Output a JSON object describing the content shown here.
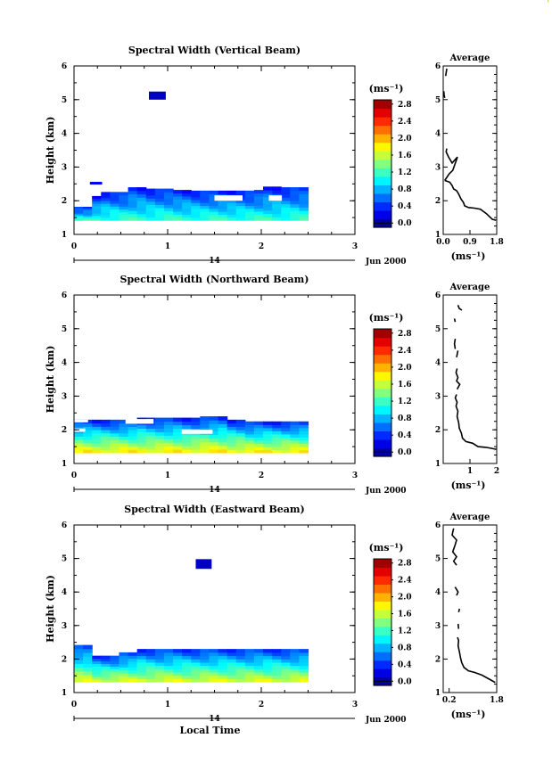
{
  "corner_mark": "'",
  "chart_data": [
    {
      "type": "heatmap",
      "title": "Spectral Width (Vertical Beam)",
      "xlabel": "",
      "ylabel": "Height (km)",
      "xlim": [
        0,
        3
      ],
      "ylim": [
        1,
        6
      ],
      "x_ticks": [
        "0",
        "1",
        "2",
        "3"
      ],
      "y_ticks": [
        "1",
        "2",
        "3",
        "4",
        "5",
        "6"
      ],
      "date_day": "14",
      "date_month": "Jun 2000",
      "colorbar": {
        "unit": "(ms⁻¹)",
        "labels": [
          "0.0",
          "0.4",
          "0.8",
          "1.2",
          "1.6",
          "2.0",
          "2.4",
          "2.8"
        ],
        "min": 0,
        "max": 3.0
      },
      "field": {
        "x_range": [
          0,
          2.5
        ],
        "top": [
          1.82,
          1.82,
          2.14,
          2.26,
          2.26,
          2.26,
          2.4,
          2.4,
          2.36,
          2.36,
          2.36,
          2.32,
          2.32,
          2.3,
          2.3,
          2.3,
          2.3,
          2.3,
          2.3,
          2.3,
          2.32,
          2.42,
          2.42,
          2.4,
          2.4,
          2.4
        ],
        "bottom": 1.42,
        "value_top": 0.45,
        "value_bottom": 1.3
      },
      "blobs": [
        {
          "x": [
            0.8,
            0.98
          ],
          "y": [
            5.0,
            5.24
          ],
          "v": 0.2
        },
        {
          "x": [
            0.17,
            0.3
          ],
          "y": [
            2.48,
            2.56
          ],
          "v": 0.35
        }
      ],
      "gaps": [
        {
          "x": [
            1.5,
            1.8
          ],
          "y": [
            2.0,
            2.16
          ]
        },
        {
          "x": [
            2.08,
            2.22
          ],
          "y": [
            2.0,
            2.16
          ]
        },
        {
          "x": [
            0.0,
            0.05
          ],
          "y": [
            2.34,
            2.48
          ]
        }
      ],
      "profile": {
        "title": "Average",
        "xlim": [
          0.0,
          1.8
        ],
        "x_ticks": [
          "0.0",
          "0.9",
          "1.8"
        ],
        "xlabel": "(ms⁻¹)",
        "y_ticks": [
          "1",
          "2",
          "3",
          "4",
          "5",
          "6"
        ],
        "segments": [
          [
            [
              0.05,
              5.05
            ],
            [
              0.03,
              5.15
            ],
            [
              0.02,
              5.25
            ]
          ],
          [
            [
              0.12,
              5.92
            ],
            [
              0.1,
              5.8
            ],
            [
              0.08,
              5.7
            ]
          ],
          [
            [
              0.12,
              3.55
            ],
            [
              0.1,
              3.45
            ],
            [
              0.18,
              3.3
            ],
            [
              0.3,
              3.12
            ],
            [
              0.48,
              3.3
            ],
            [
              0.38,
              3.05
            ],
            [
              0.32,
              2.9
            ],
            [
              0.2,
              2.8
            ],
            [
              0.05,
              2.6
            ]
          ],
          [
            [
              0.05,
              2.6
            ],
            [
              0.12,
              2.58
            ],
            [
              0.22,
              2.55
            ],
            [
              0.3,
              2.45
            ],
            [
              0.35,
              2.35
            ],
            [
              0.45,
              2.3
            ],
            [
              0.52,
              2.2
            ],
            [
              0.6,
              2.05
            ],
            [
              0.68,
              1.95
            ],
            [
              0.72,
              1.85
            ],
            [
              0.85,
              1.8
            ],
            [
              1.05,
              1.78
            ],
            [
              1.25,
              1.75
            ],
            [
              1.45,
              1.62
            ],
            [
              1.65,
              1.45
            ],
            [
              1.78,
              1.42
            ]
          ]
        ]
      }
    },
    {
      "type": "heatmap",
      "title": "Spectral Width (Northward Beam)",
      "xlabel": "",
      "ylabel": "Height (km)",
      "xlim": [
        0,
        3
      ],
      "ylim": [
        1,
        6
      ],
      "x_ticks": [
        "0",
        "1",
        "2",
        "3"
      ],
      "y_ticks": [
        "1",
        "2",
        "3",
        "4",
        "5",
        "6"
      ],
      "date_day": "14",
      "date_month": "Jun 2000",
      "colorbar": {
        "unit": "(ms⁻¹)",
        "labels": [
          "0.0",
          "0.4",
          "0.8",
          "1.2",
          "1.6",
          "2.0",
          "2.4",
          "2.8"
        ],
        "min": 0,
        "max": 3.0
      },
      "field": {
        "x_range": [
          0,
          2.5
        ],
        "top": [
          2.3,
          2.3,
          2.3,
          2.3,
          2.3,
          2.3,
          2.3,
          2.36,
          2.36,
          2.36,
          2.36,
          2.36,
          2.36,
          2.36,
          2.4,
          2.4,
          2.4,
          2.3,
          2.3,
          2.25,
          2.25,
          2.25,
          2.25,
          2.25,
          2.25,
          2.25
        ],
        "bottom": 1.32,
        "value_top": 0.45,
        "value_bottom": 1.95
      },
      "blobs": [],
      "gaps": [
        {
          "x": [
            0.0,
            0.12
          ],
          "y": [
            1.94,
            2.04
          ]
        },
        {
          "x": [
            0.55,
            0.85
          ],
          "y": [
            2.18,
            2.32
          ]
        },
        {
          "x": [
            1.15,
            1.48
          ],
          "y": [
            1.88,
            2.0
          ]
        },
        {
          "x": [
            0.0,
            0.15
          ],
          "y": [
            2.22,
            2.3
          ]
        }
      ],
      "profile": {
        "title": "Average",
        "xlim": [
          0.0,
          2.0
        ],
        "x_ticks": [
          "1",
          "2"
        ],
        "xlabel": "(ms⁻¹)",
        "y_ticks": [
          "1",
          "2",
          "3",
          "4",
          "5",
          "6"
        ],
        "segments": [
          [
            [
              0.55,
              5.7
            ],
            [
              0.6,
              5.6
            ],
            [
              0.7,
              5.55
            ]
          ],
          [
            [
              0.42,
              5.3
            ],
            [
              0.45,
              5.2
            ]
          ],
          [
            [
              0.45,
              4.7
            ],
            [
              0.42,
              4.55
            ],
            [
              0.45,
              4.4
            ]
          ],
          [
            [
              0.55,
              4.35
            ],
            [
              0.5,
              4.15
            ]
          ],
          [
            [
              0.52,
              3.82
            ],
            [
              0.48,
              3.7
            ],
            [
              0.55,
              3.55
            ],
            [
              0.5,
              3.45
            ],
            [
              0.62,
              3.35
            ],
            [
              0.52,
              3.2
            ]
          ],
          [
            [
              0.5,
              3.05
            ],
            [
              0.45,
              2.95
            ],
            [
              0.52,
              2.82
            ],
            [
              0.48,
              2.7
            ],
            [
              0.55,
              2.55
            ],
            [
              0.52,
              2.4
            ],
            [
              0.58,
              2.2
            ],
            [
              0.6,
              2.05
            ],
            [
              0.68,
              1.9
            ],
            [
              0.72,
              1.75
            ],
            [
              0.85,
              1.65
            ],
            [
              1.1,
              1.6
            ],
            [
              1.3,
              1.5
            ],
            [
              1.6,
              1.48
            ],
            [
              1.8,
              1.45
            ],
            [
              1.98,
              1.42
            ]
          ]
        ]
      }
    },
    {
      "type": "heatmap",
      "title": "Spectral Width (Eastward Beam)",
      "xlabel": "Local Time",
      "ylabel": "Height (km)",
      "xlim": [
        0,
        3
      ],
      "ylim": [
        1,
        6
      ],
      "x_ticks": [
        "0",
        "1",
        "2",
        "3"
      ],
      "y_ticks": [
        "1",
        "2",
        "3",
        "4",
        "5",
        "6"
      ],
      "date_day": "14",
      "date_month": "Jun 2000",
      "colorbar": {
        "unit": "(ms⁻¹)",
        "labels": [
          "0.0",
          "0.4",
          "0.8",
          "1.2",
          "1.6",
          "2.0",
          "2.4",
          "2.8"
        ],
        "min": 0,
        "max": 3.0
      },
      "field": {
        "x_range": [
          0,
          2.5
        ],
        "top": [
          2.42,
          2.42,
          2.1,
          2.1,
          2.1,
          2.2,
          2.2,
          2.3,
          2.3,
          2.3,
          2.3,
          2.3,
          2.3,
          2.3,
          2.3,
          2.3,
          2.3,
          2.3,
          2.3,
          2.3,
          2.3,
          2.3,
          2.3,
          2.3,
          2.3,
          2.3
        ],
        "bottom": 1.32,
        "value_top": 0.5,
        "value_bottom": 1.8
      },
      "blobs": [
        {
          "x": [
            1.3,
            1.47
          ],
          "y": [
            4.69,
            4.98
          ],
          "v": 0.2
        }
      ],
      "gaps": [],
      "profile": {
        "title": "Average",
        "xlim": [
          0.0,
          1.8
        ],
        "x_ticks": [
          "0.2",
          "1.8"
        ],
        "xlabel": "(ms⁻¹)",
        "y_ticks": [
          "1",
          "2",
          "3",
          "4",
          "5",
          "6"
        ],
        "segments": [
          [
            [
              0.35,
              5.9
            ],
            [
              0.3,
              5.7
            ],
            [
              0.45,
              5.55
            ],
            [
              0.4,
              5.4
            ],
            [
              0.32,
              5.2
            ],
            [
              0.45,
              5.05
            ],
            [
              0.35,
              4.92
            ],
            [
              0.45,
              4.8
            ]
          ],
          [
            [
              0.4,
              4.15
            ],
            [
              0.5,
              4.0
            ],
            [
              0.45,
              3.9
            ]
          ],
          [
            [
              0.55,
              3.5
            ],
            [
              0.52,
              3.4
            ]
          ],
          [
            [
              0.5,
              3.05
            ],
            [
              0.52,
              2.9
            ]
          ],
          [
            [
              0.48,
              2.65
            ],
            [
              0.52,
              2.55
            ],
            [
              0.5,
              2.4
            ],
            [
              0.55,
              2.2
            ],
            [
              0.58,
              2.05
            ],
            [
              0.62,
              1.9
            ],
            [
              0.7,
              1.75
            ],
            [
              0.85,
              1.65
            ],
            [
              1.05,
              1.6
            ],
            [
              1.3,
              1.52
            ],
            [
              1.55,
              1.4
            ],
            [
              1.75,
              1.3
            ]
          ]
        ]
      }
    }
  ]
}
